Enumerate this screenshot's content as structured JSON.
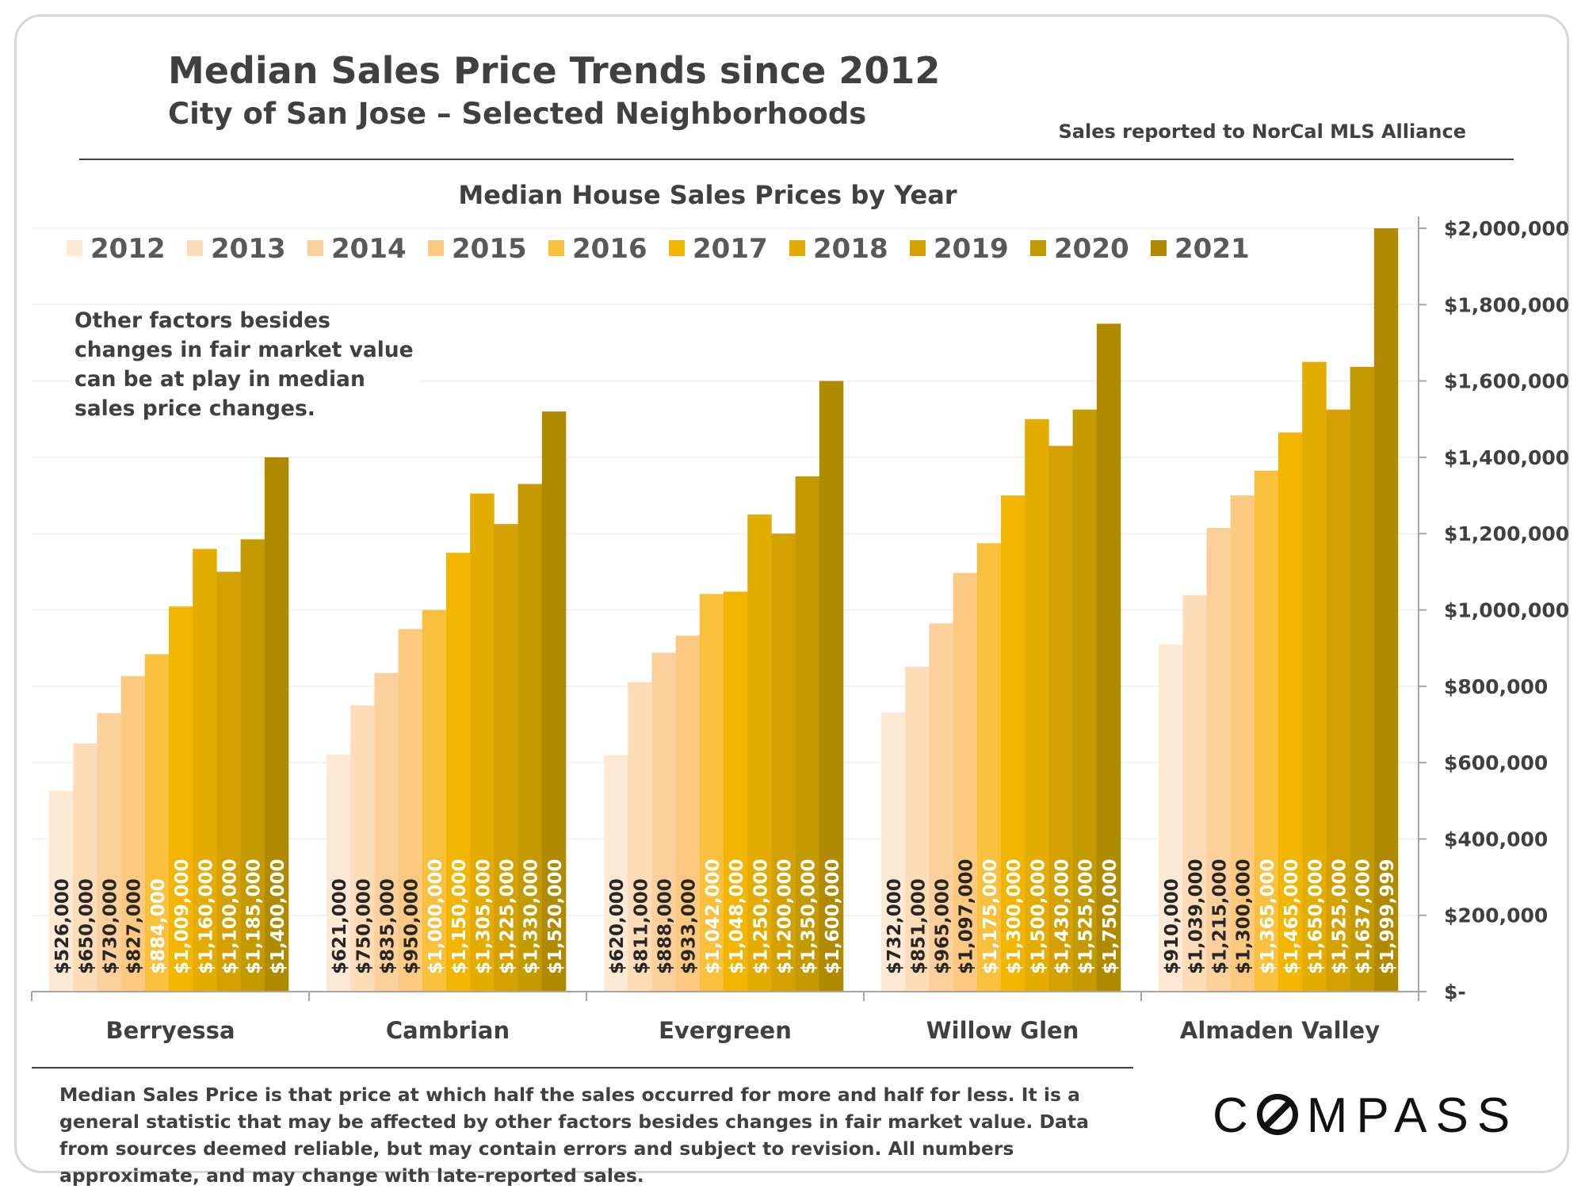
{
  "header": {
    "title": "Median Sales Price Trends since 2012",
    "subtitle": "City of San Jose – Selected Neighborhoods",
    "source": "Sales reported to NorCal MLS Alliance"
  },
  "note": "Other factors besides changes in fair market value can be at play in median sales price changes.",
  "footnote": "Median Sales Price is that price at which half the sales occurred for more and half for less. It is a general statistic that may be affected by other factors besides changes in fair market value. Data from sources deemed reliable, but may contain errors and subject to revision.  All numbers approximate, and may change with late-reported sales.",
  "logo": {
    "before": "C",
    "after": "MPASS"
  },
  "colors": {
    "series": [
      "#fde9d4",
      "#fddcb8",
      "#fcd09c",
      "#fbc97f",
      "#f8c03c",
      "#f2b600",
      "#e5ac00",
      "#d4a100",
      "#c39a00",
      "#b08a00"
    ],
    "label_dark": "#262626",
    "label_light": "#ffffff",
    "axis": "#a6a6a6",
    "text": "#404040"
  },
  "chart_data": {
    "type": "bar",
    "title": "Median House Sales Prices by Year",
    "categories": [
      "Berryessa",
      "Cambrian",
      "Evergreen",
      "Willow Glen",
      "Almaden Valley"
    ],
    "series": [
      {
        "name": "2012",
        "values": [
          526000,
          621000,
          620000,
          732000,
          910000
        ],
        "labels": [
          "$526,000",
          "$621,000",
          "$620,000",
          "$732,000",
          "$910,000"
        ]
      },
      {
        "name": "2013",
        "values": [
          650000,
          750000,
          811000,
          851000,
          1039000
        ],
        "labels": [
          "$650,000",
          "$750,000",
          "$811,000",
          "$851,000",
          "$1,039,000"
        ]
      },
      {
        "name": "2014",
        "values": [
          730000,
          835000,
          888000,
          965000,
          1215000
        ],
        "labels": [
          "$730,000",
          "$835,000",
          "$888,000",
          "$965,000",
          "$1,215,000"
        ]
      },
      {
        "name": "2015",
        "values": [
          827000,
          950000,
          933000,
          1097000,
          1300000
        ],
        "labels": [
          "$827,000",
          "$950,000",
          "$933,000",
          "$1,097,000",
          "$1,300,000"
        ]
      },
      {
        "name": "2016",
        "values": [
          884000,
          1000000,
          1042000,
          1175000,
          1365000
        ],
        "labels": [
          "$884,000",
          "$1,000,000",
          "$1,042,000",
          "$1,175,000",
          "$1,365,000"
        ]
      },
      {
        "name": "2017",
        "values": [
          1009000,
          1150000,
          1048000,
          1300000,
          1465000
        ],
        "labels": [
          "$1,009,000",
          "$1,150,000",
          "$1,048,000",
          "$1,300,000",
          "$1,465,000"
        ]
      },
      {
        "name": "2018",
        "values": [
          1160000,
          1305000,
          1250000,
          1500000,
          1650000
        ],
        "labels": [
          "$1,160,000",
          "$1,305,000",
          "$1,250,000",
          "$1,500,000",
          "$1,650,000"
        ]
      },
      {
        "name": "2019",
        "values": [
          1100000,
          1225000,
          1200000,
          1430000,
          1525000
        ],
        "labels": [
          "$1,100,000",
          "$1,225,000",
          "$1,200,000",
          "$1,430,000",
          "$1,525,000"
        ]
      },
      {
        "name": "2020",
        "values": [
          1185000,
          1330000,
          1350000,
          1525000,
          1637000
        ],
        "labels": [
          "$1,185,000",
          "$1,330,000",
          "$1,350,000",
          "$1,525,000",
          "$1,637,000"
        ]
      },
      {
        "name": "2021",
        "values": [
          1400000,
          1520000,
          1600000,
          1750000,
          1999999
        ],
        "labels": [
          "$1,400,000",
          "$1,520,000",
          "$1,600,000",
          "$1,750,000",
          "$1,999,999"
        ]
      }
    ],
    "label_light_indices": [
      4,
      5,
      6,
      7,
      8,
      9
    ],
    "label_light_exceptions": [
      [
        0,
        4,
        "dark"
      ]
    ],
    "ylim": [
      0,
      2000000
    ],
    "yticks": [
      0,
      200000,
      400000,
      600000,
      800000,
      1000000,
      1200000,
      1400000,
      1600000,
      1800000,
      2000000
    ],
    "ytick_labels": [
      "$-",
      "$200,000",
      "$400,000",
      "$600,000",
      "$800,000",
      "$1,000,000",
      "$1,200,000",
      "$1,400,000",
      "$1,600,000",
      "$1,800,000",
      "$2,000,000"
    ],
    "yaxis_side": "right",
    "legend_position": "top",
    "grid": true,
    "data_labels": "vertical-inside-base"
  }
}
